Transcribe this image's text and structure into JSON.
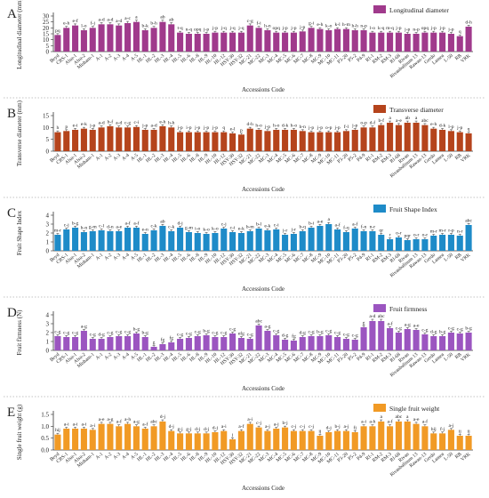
{
  "chart_data": [
    {
      "type": "bar",
      "panel_letter": "A",
      "title": "Longitudinal diameter",
      "ylabel": "Longitudinal diameter (mm)",
      "xlabel": "Accessions Code",
      "ylim": [
        0,
        30
      ],
      "yticks": [
        0,
        5,
        10,
        15,
        20,
        25,
        30
      ],
      "color": "#A03A8C",
      "legend_position": "top-right",
      "categories": [
        "Beyd",
        "CRS-1",
        "Alsu-1",
        "Alsu-2",
        "Misham-1",
        "A-1",
        "A-2",
        "A-3",
        "A-4",
        "A-5",
        "HL-1",
        "HL-2",
        "HL-3",
        "HL-4",
        "HL-5",
        "HL-6",
        "HL-8",
        "HL-9",
        "HL-10",
        "HL-12",
        "HSY-30",
        "HSY-32",
        "MC-21",
        "MC-22",
        "MC-3",
        "MC-4",
        "MC-5",
        "MC-6",
        "MC-7",
        "MC-8",
        "MC-9",
        "MC-10",
        "MC-11",
        "P3-20",
        "P5-2",
        "P4-9",
        "RI-1",
        "RM-2",
        "RM-3",
        "RI-68",
        "Rivan",
        "Rivanbalinum 13",
        "Rawan-13",
        "Gerdo",
        "Lamea",
        "L-50",
        "RB",
        "VRK"
      ],
      "values": [
        14,
        20,
        22,
        18,
        20,
        23,
        23,
        22,
        24,
        25,
        18,
        20,
        25,
        23,
        16,
        15,
        15,
        15,
        16,
        16,
        16,
        16,
        22,
        20,
        18,
        16,
        16,
        16,
        17,
        20,
        19,
        18,
        19,
        19,
        18,
        18,
        16,
        16,
        16,
        16,
        15,
        15,
        16,
        16,
        16,
        15,
        13,
        21
      ],
      "labels": [
        "pq",
        "e-h",
        "e-f",
        "l-o",
        "f-j",
        "a-d",
        "a-d",
        "a-d",
        "a-c",
        "a",
        "b-k",
        "b-h",
        "ab",
        "ab",
        "t-q",
        "n-q",
        "opq",
        "j-p",
        "j-p",
        "j-q",
        "j-q",
        "j-q",
        "c-g",
        "f-i",
        "h-n",
        "opq",
        "j-p",
        "j-p",
        "j-p",
        "g-i",
        "e-h",
        "k-o",
        "k-l",
        "h-m",
        "h-h",
        "n-p",
        "l-o",
        "k-q",
        "m-q",
        "j-p",
        "j-p",
        "n-p",
        "opq",
        "j-p",
        "j-p",
        "j-p",
        "q",
        "d-h"
      ]
    },
    {
      "type": "bar",
      "panel_letter": "B",
      "title": "Transverse diameter",
      "ylabel": "Transverse diameter (mm)",
      "xlabel": "Accessions Code",
      "ylim": [
        0,
        15
      ],
      "yticks": [
        0,
        5,
        10,
        15
      ],
      "color": "#B5441C",
      "legend_position": "top-right",
      "categories": [
        "Beyd",
        "CRS-1",
        "Alsu-1",
        "Alsu-2",
        "Misham-1",
        "A-1",
        "A-2",
        "A-3",
        "A-4",
        "A-5",
        "HL-1",
        "HL-2",
        "HL-3",
        "HL-4",
        "HL-5",
        "HL-6",
        "HL-8",
        "HL-9",
        "HL-10",
        "HL-12",
        "HSY-30",
        "HSY-32",
        "MC-21",
        "MC-22",
        "MC-3",
        "MC-4",
        "MC-5",
        "MC-6",
        "MC-7",
        "MC-8",
        "MC-9",
        "MC-10",
        "MC-11",
        "P3-20",
        "P5-2",
        "P4-9",
        "RI-1",
        "RM-2",
        "RM-3",
        "RI-68",
        "Rivan",
        "Rivanbalinum 13",
        "Rawan-13",
        "Gerdo",
        "Lamea",
        "L-50",
        "RB",
        "VRK"
      ],
      "values": [
        8,
        8.5,
        9,
        9.5,
        9,
        10,
        10.5,
        10,
        10,
        10.2,
        9,
        9,
        10.5,
        10,
        8,
        8,
        8,
        8,
        8,
        8,
        7.5,
        7,
        9.5,
        9,
        8.5,
        9,
        9,
        9,
        8.5,
        8,
        8,
        8,
        8,
        8.5,
        9,
        10,
        10,
        11,
        12,
        11,
        12,
        12,
        11,
        9.5,
        9,
        8.5,
        8,
        7.5
      ],
      "labels": [
        "h",
        "p",
        "e-i",
        "e-k",
        "j-p",
        "a-d",
        "b-f",
        "a-d",
        "c-g",
        "c-i",
        "j-p",
        "a-d",
        "e-h",
        "h-h",
        "j-p",
        "i-p",
        "j-p",
        "j-p",
        "j-p",
        "q",
        "e-l",
        "p",
        "d-h",
        "h-o",
        "j-p",
        "h-o",
        "d-k",
        "h-o",
        "h-n",
        "j-p",
        "j-p",
        "o-p",
        "j-p",
        "f-l",
        "j-p",
        "o-p",
        "d-f",
        "b-f",
        "a",
        "a-e",
        "ab",
        "a",
        "abc",
        "e-h",
        "d-k",
        "l-p",
        "j-p",
        "q"
      ]
    },
    {
      "type": "bar",
      "panel_letter": "C",
      "title": "Fruit Shape Index",
      "ylabel": "Fruit Shape Index",
      "xlabel": "Accessions Code",
      "ylim": [
        0,
        4
      ],
      "yticks": [
        0,
        1,
        2,
        3,
        4
      ],
      "color": "#1E8BC8",
      "legend_position": "top-right",
      "categories": [
        "Beyd",
        "CRS-1",
        "Alsu-1",
        "Alsu-2",
        "Misham-1",
        "A-1",
        "A-2",
        "A-3",
        "A-4",
        "A-5",
        "HL-1",
        "HL-2",
        "HL-3",
        "HL-4",
        "HL-5",
        "HL-6",
        "HL-8",
        "HL-9",
        "HL-10",
        "HL-12",
        "HSY-30",
        "HSY-32",
        "MC-21",
        "MC-22",
        "MC-3",
        "MC-4",
        "MC-5",
        "MC-6",
        "MC-7",
        "MC-8",
        "MC-9",
        "MC-10",
        "MC-11",
        "P3-20",
        "P5-2",
        "P4-9",
        "RI-1",
        "RM-2",
        "RM-3",
        "RI-68",
        "Rivan",
        "Rivanbalinum 13",
        "Rawan-13",
        "Gerdo",
        "Lamea",
        "L-50",
        "RB",
        "VRK"
      ],
      "values": [
        1.8,
        2.4,
        2.6,
        2.1,
        2.2,
        2.3,
        2.2,
        2.2,
        2.6,
        2.6,
        1.9,
        2.3,
        2.8,
        2.2,
        2.6,
        2.1,
        2.0,
        1.9,
        2.0,
        2.5,
        2.1,
        2.0,
        2.2,
        2.5,
        2.3,
        2.4,
        1.8,
        1.9,
        2.2,
        2.6,
        2.8,
        3.0,
        2.4,
        2.1,
        2.5,
        2.2,
        2.2,
        1.8,
        1.3,
        1.5,
        1.2,
        1.3,
        1.3,
        1.7,
        1.8,
        1.8,
        1.7,
        2.9
      ],
      "labels": [
        "m-r",
        "c-j",
        "b-g",
        "h-n",
        "g-m",
        "c-l",
        "d-n",
        "a-e",
        "a-f",
        "a-f",
        "e-n",
        "c-k",
        "ab",
        "c-k",
        "d-j",
        "g-m",
        "i-o",
        "k-o",
        "k-o",
        "c-j",
        "c-i",
        "e-k",
        "b-m",
        "b-l",
        "e-k",
        "c-i",
        "j-r",
        "j-r",
        "b-q",
        "b-i",
        "a-e",
        "a",
        "a-f",
        "f-q",
        "a-f",
        "f-n",
        "n-r",
        "qr",
        "r",
        "o-r",
        "pqr",
        "o-r",
        "o-r",
        "m-r",
        "m-r",
        "r-p",
        "n-r",
        "abc"
      ]
    },
    {
      "type": "bar",
      "panel_letter": "D",
      "title": "Fruit firmness",
      "ylabel": "Fruit firmness (N)",
      "xlabel": "Accessions Code",
      "ylim": [
        0,
        4
      ],
      "yticks": [
        0,
        1,
        2,
        3,
        4
      ],
      "color": "#9B55C0",
      "legend_position": "top-right",
      "categories": [
        "Beyd",
        "CRS-1",
        "Alsu-1",
        "Alsu-2",
        "Misham-1",
        "A-1",
        "A-2",
        "A-3",
        "A-4",
        "A-5",
        "HL-1",
        "HL-2",
        "HL-3",
        "HL-4",
        "HL-5",
        "HL-6",
        "HL-8",
        "HL-9",
        "HL-10",
        "HL-12",
        "HSY-30",
        "HSY-32",
        "MC-21",
        "MC-22",
        "MC-3",
        "MC-4",
        "MC-5",
        "MC-6",
        "MC-7",
        "MC-8",
        "MC-9",
        "MC-10",
        "MC-11",
        "P3-20",
        "P5-2",
        "P4-9",
        "RI-1",
        "RM-2",
        "RM-3",
        "RI-68",
        "Rivan",
        "Rivanbalinum 13",
        "Rawan-13",
        "Gerdo",
        "Lamea",
        "L-50",
        "RB",
        "VRK"
      ],
      "values": [
        1.6,
        1.5,
        1.5,
        2.2,
        1.3,
        1.3,
        1.5,
        1.6,
        1.6,
        1.9,
        1.5,
        0.4,
        0.7,
        0.9,
        1.3,
        1.4,
        1.6,
        1.7,
        1.5,
        1.5,
        1.9,
        1.4,
        1.3,
        2.8,
        2.2,
        1.7,
        1.2,
        1.1,
        1.5,
        1.6,
        1.6,
        1.7,
        1.5,
        1.3,
        1.2,
        2.6,
        3.3,
        3.3,
        2.5,
        2.0,
        2.4,
        2.3,
        1.8,
        1.6,
        1.6,
        2.0,
        1.9,
        2.0
      ],
      "labels": [
        "c-g",
        "c-g",
        "c-g",
        "a-g",
        "c-g",
        "d-g",
        "c-g",
        "c-g",
        "c-g",
        "b-g",
        "b-g",
        "g",
        "fg",
        "fg",
        "c-g",
        "c-g",
        "c-g",
        "b-g",
        "c-g",
        "c-g",
        "c-g",
        "efg",
        "c-g",
        "abc",
        "a-g",
        "c-g",
        "d-g",
        "fg",
        "d-g",
        "c-g",
        "b-g",
        "c-g",
        "c-g",
        "c-g",
        "c-g",
        "g",
        "a-d",
        "abc",
        "a-f",
        "c-g",
        "a-g",
        "a-e",
        "c-g",
        "d-g",
        "b-g",
        "c-g",
        "c-g",
        "b-g"
      ]
    },
    {
      "type": "bar",
      "panel_letter": "E",
      "title": "Single fruit weight",
      "ylabel": "Single fruit weight (g)",
      "xlabel": "Accessions Code",
      "ylim": [
        0,
        1.5
      ],
      "yticks": [
        0.0,
        0.5,
        1.0,
        1.5
      ],
      "color": "#F19A25",
      "legend_position": "top-right",
      "categories": [
        "Beyd",
        "CRS-1",
        "Alsu-1",
        "Alsu-2",
        "Misham-1",
        "A-1",
        "A-2",
        "A-3",
        "A-4",
        "A-5",
        "HL-1",
        "HL-2",
        "HL-3",
        "HL-4",
        "HL-5",
        "HL-6",
        "HL-8",
        "HL-9",
        "HL-10",
        "HL-12",
        "HSY-30",
        "HSY-32",
        "MC-21",
        "MC-22",
        "MC-3",
        "MC-4",
        "MC-5",
        "MC-6",
        "MC-7",
        "MC-8",
        "MC-9",
        "MC-10",
        "MC-11",
        "P3-20",
        "P5-2",
        "P4-9",
        "RI-1",
        "RM-2",
        "RM-3",
        "RI-68",
        "Rivan",
        "Rivanbalinum 13",
        "Rawan-13",
        "Gerdo",
        "Lamea",
        "L-50",
        "RB",
        "VRK"
      ],
      "values": [
        0.65,
        0.9,
        0.9,
        0.9,
        0.85,
        1.1,
        1.1,
        1.0,
        1.1,
        1.0,
        0.9,
        1.0,
        1.2,
        0.8,
        0.7,
        0.7,
        0.7,
        0.7,
        0.75,
        0.8,
        0.45,
        0.8,
        1.1,
        0.95,
        0.8,
        0.9,
        0.95,
        0.8,
        0.8,
        0.8,
        0.6,
        0.75,
        0.8,
        0.8,
        0.75,
        1.0,
        1.0,
        1.2,
        1.0,
        1.2,
        1.2,
        1.1,
        1.0,
        0.7,
        0.7,
        0.85,
        0.6,
        0.6
      ],
      "labels": [
        "hij",
        "a-i",
        "a-i",
        "a-i",
        "a-i",
        "a-e",
        "a-g",
        "a-f",
        "a-h",
        "a-g",
        "a-f",
        "abc",
        "d-j",
        "d-j",
        "g-j",
        "g-j",
        "d-j",
        "d-j",
        "d-j",
        "a-i",
        "j",
        "a-f",
        "a-i",
        "c-j",
        "a-j",
        "a-j",
        "b-j",
        "c-j",
        "c-j",
        "c-j",
        "ij",
        "d-j",
        "b-j",
        "a-j",
        "fj",
        "a-i",
        "a-h",
        "a",
        "a-f",
        "abc",
        "a",
        "a-e",
        "a-f",
        "hij",
        "f-j",
        "a-j",
        "ij",
        "ij"
      ]
    }
  ]
}
